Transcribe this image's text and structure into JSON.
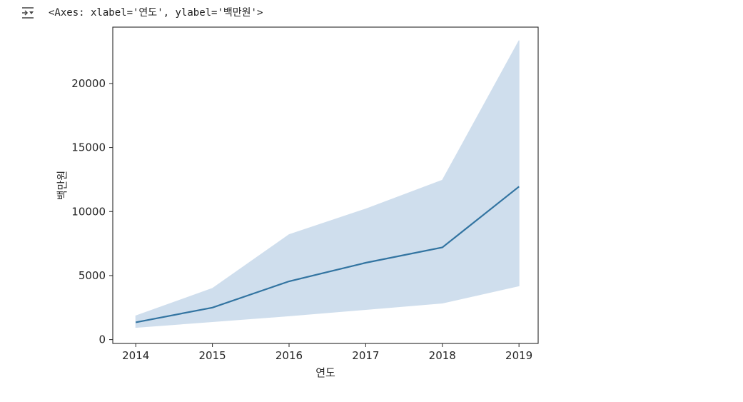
{
  "output": {
    "repr_text": "<Axes: xlabel='연도', ylabel='백만원'>",
    "icon": "output-toggle-icon"
  },
  "chart_data": {
    "type": "line",
    "xlabel": "연도",
    "ylabel": "백만원",
    "x": [
      2014,
      2015,
      2016,
      2017,
      2018,
      2019
    ],
    "series": [
      {
        "values": [
          1350,
          2500,
          4550,
          6000,
          7200,
          11950
        ],
        "ci_lower": [
          950,
          1400,
          1850,
          2350,
          2850,
          4200
        ],
        "ci_upper": [
          1850,
          4000,
          8200,
          10200,
          12450,
          23350
        ],
        "color": "#3274a1",
        "band_color": "#cfdeed"
      }
    ],
    "xticks": [
      2014,
      2015,
      2016,
      2017,
      2018,
      2019
    ],
    "yticks": [
      0,
      5000,
      10000,
      15000,
      20000
    ],
    "xlim": [
      2013.7,
      2019.25
    ],
    "ylim": [
      -300,
      24400
    ],
    "grid": false
  }
}
